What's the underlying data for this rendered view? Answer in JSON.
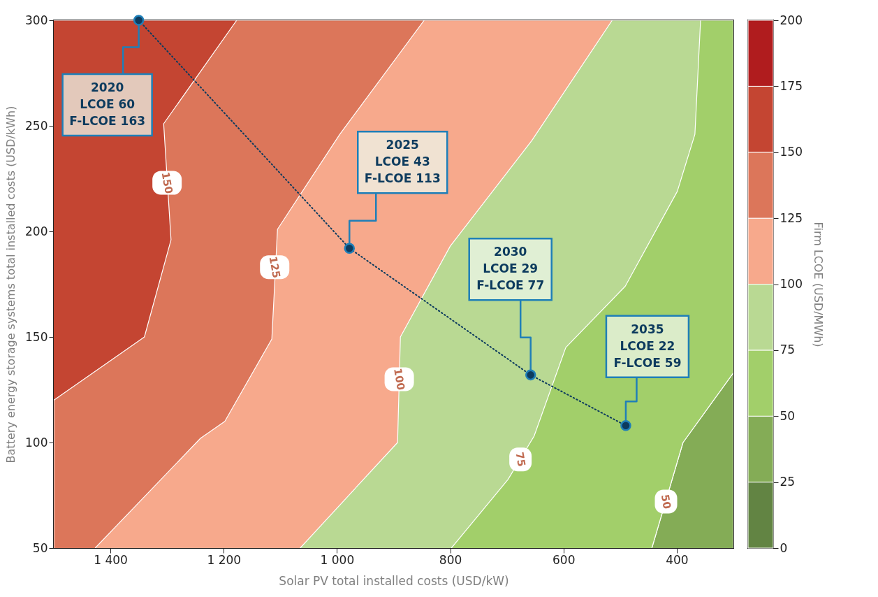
{
  "chart_data": {
    "type": "area",
    "xlabel": "Solar PV total installed costs (USD/kW)",
    "ylabel": "Battery energy storage systems total installed costs (USD/kWh)",
    "clabel": "Firm LCOE (USD/MWh)",
    "xlim": [
      1500,
      300
    ],
    "ylim": [
      50,
      300
    ],
    "xticks": [
      {
        "value": 1400,
        "label": "1 400"
      },
      {
        "value": 1200,
        "label": "1 200"
      },
      {
        "value": 1000,
        "label": "1 000"
      },
      800,
      600,
      400
    ],
    "yticks": [
      50,
      100,
      150,
      200,
      250,
      300
    ],
    "clim": [
      0,
      200
    ],
    "cticks": [
      0,
      25,
      50,
      75,
      100,
      125,
      150,
      175,
      200
    ],
    "colors": [
      "#628443",
      "#84ac56",
      "#a2cf6a",
      "#b9d993",
      "#f7a98c",
      "#dc765a",
      "#c44532",
      "#b01c1e"
    ],
    "grid": false,
    "series": [
      {
        "color": "#84ac56",
        "x": [
          444,
          389,
          300,
          300
        ],
        "values": [
          50,
          100,
          133,
          50
        ]
      },
      {
        "color": "#a2cf6a",
        "x": [
          444,
          389,
          300,
          300,
          1500,
          1500
        ],
        "values": [
          50,
          100,
          133,
          300,
          300,
          50
        ]
      },
      {
        "color": "#b9d993",
        "x": [
          798,
          698,
          652,
          596,
          491,
          399,
          368,
          358,
          1500,
          1500
        ],
        "values": [
          50,
          82.5,
          103,
          145,
          174,
          219,
          246,
          300,
          300,
          50
        ]
      },
      {
        "color": "#f7a98c",
        "x": [
          1065,
          893,
          888,
          800,
          656,
          514,
          1500,
          1500
        ],
        "values": [
          50,
          100,
          150,
          193,
          243,
          300,
          300,
          50
        ]
      },
      {
        "color": "#dc765a",
        "x": [
          1427,
          1241,
          1198,
          1115,
          1105,
          995,
          846,
          1500,
          1500
        ],
        "values": [
          50,
          102,
          110,
          149,
          201,
          246,
          300,
          300,
          50
        ]
      },
      {
        "color": "#c44532",
        "x": [
          1500,
          1340,
          1293,
          1306,
          1177,
          1500
        ],
        "values": [
          120,
          150,
          196,
          251,
          300,
          300
        ]
      },
      {
        "type": "line",
        "color": "#0d3b5e",
        "line_style": "dotted",
        "x": [
          1350,
          978,
          658,
          490
        ],
        "values": [
          300,
          192,
          132,
          108
        ]
      },
      {
        "type": "scatter",
        "color": "#0d3b5e",
        "marker": "circle",
        "x": [
          1350,
          978,
          658,
          490
        ],
        "values": [
          300,
          192,
          132,
          108
        ]
      }
    ],
    "annotations": [
      {
        "text": "2020\nLCOE 60\nF-LCOE 163",
        "x": 1350,
        "y": 300
      },
      {
        "text": "2025\nLCOE 43\nF-LCOE 113",
        "x": 978,
        "y": 192
      },
      {
        "text": "2030\nLCOE 29\nF-LCOE 77",
        "x": 658,
        "y": 132
      },
      {
        "text": "2035\nLCOE 22\nF-LCOE 59",
        "x": 490,
        "y": 108
      },
      {
        "text": "150",
        "x": 1300,
        "y": 223
      },
      {
        "text": "125",
        "x": 1110,
        "y": 183
      },
      {
        "text": "100",
        "x": 890,
        "y": 130
      },
      {
        "text": "75",
        "x": 676,
        "y": 92
      },
      {
        "text": "50",
        "x": 419,
        "y": 72
      }
    ]
  }
}
